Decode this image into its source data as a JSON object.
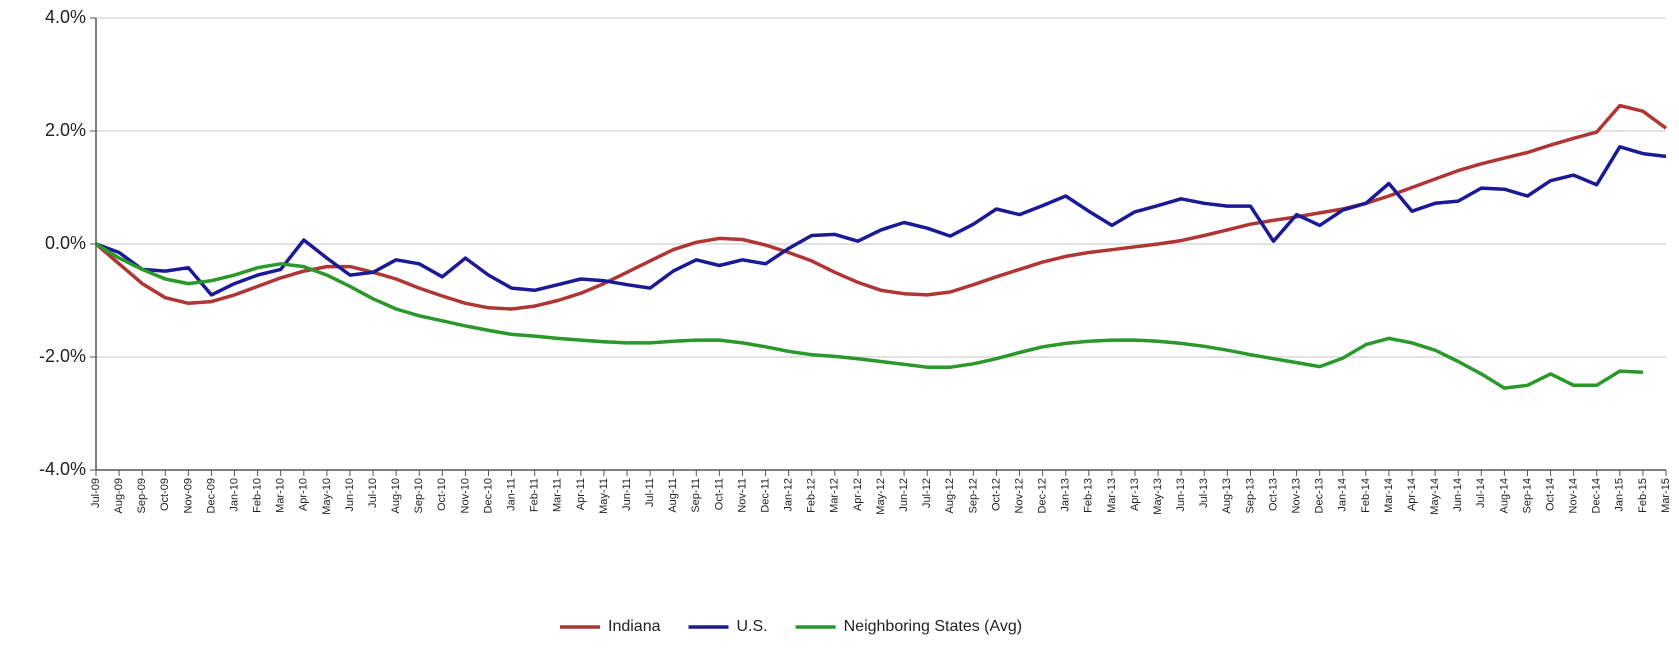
{
  "chart_data": {
    "type": "line",
    "categories": [
      "Jul-09",
      "Aug-09",
      "Sep-09",
      "Oct-09",
      "Nov-09",
      "Dec-09",
      "Jan-10",
      "Feb-10",
      "Mar-10",
      "Apr-10",
      "May-10",
      "Jun-10",
      "Jul-10",
      "Aug-10",
      "Sep-10",
      "Oct-10",
      "Nov-10",
      "Dec-10",
      "Jan-11",
      "Feb-11",
      "Mar-11",
      "Apr-11",
      "May-11",
      "Jun-11",
      "Jul-11",
      "Aug-11",
      "Sep-11",
      "Oct-11",
      "Nov-11",
      "Dec-11",
      "Jan-12",
      "Feb-12",
      "Mar-12",
      "Apr-12",
      "May-12",
      "Jun-12",
      "Jul-12",
      "Aug-12",
      "Sep-12",
      "Oct-12",
      "Nov-12",
      "Dec-12",
      "Jan-13",
      "Feb-13",
      "Mar-13",
      "Apr-13",
      "May-13",
      "Jun-13",
      "Jul-13",
      "Aug-13",
      "Sep-13",
      "Oct-13",
      "Nov-13",
      "Dec-13",
      "Jan-14",
      "Feb-14",
      "Mar-14",
      "Apr-14",
      "May-14",
      "Jun-14",
      "Jul-14",
      "Aug-14",
      "Sep-14",
      "Oct-14",
      "Nov-14",
      "Dec-14",
      "Jan-15",
      "Feb-15",
      "Mar-15"
    ],
    "series": [
      {
        "name": "Indiana",
        "color": "#b03535",
        "values": [
          0,
          -0.35,
          -0.7,
          -0.95,
          -1.05,
          -1.02,
          -0.9,
          -0.75,
          -0.6,
          -0.48,
          -0.4,
          -0.4,
          -0.5,
          -0.62,
          -0.78,
          -0.92,
          -1.05,
          -1.13,
          -1.15,
          -1.1,
          -1,
          -0.87,
          -0.7,
          -0.5,
          -0.3,
          -0.1,
          0.03,
          0.1,
          0.08,
          -0.02,
          -0.15,
          -0.3,
          -0.5,
          -0.68,
          -0.82,
          -0.88,
          -0.9,
          -0.85,
          -0.72,
          -0.58,
          -0.45,
          -0.32,
          -0.22,
          -0.15,
          -0.1,
          -0.05,
          0,
          0.06,
          0.15,
          0.25,
          0.35,
          0.42,
          0.48,
          0.55,
          0.62,
          0.72,
          0.85,
          1,
          1.15,
          1.3,
          1.42,
          1.52,
          1.62,
          1.75,
          1.87,
          1.98,
          2.45,
          2.35,
          2.05
        ]
      },
      {
        "name": "U.S.",
        "color": "#1a1a96",
        "values": [
          0,
          -0.15,
          -0.45,
          -0.48,
          -0.42,
          -0.9,
          -0.7,
          -0.55,
          -0.45,
          0.07,
          -0.25,
          -0.55,
          -0.5,
          -0.28,
          -0.35,
          -0.58,
          -0.25,
          -0.55,
          -0.78,
          -0.82,
          -0.72,
          -0.62,
          -0.65,
          -0.72,
          -0.78,
          -0.48,
          -0.28,
          -0.38,
          -0.28,
          -0.35,
          -0.08,
          0.15,
          0.17,
          0.05,
          0.25,
          0.38,
          0.28,
          0.14,
          0.35,
          0.62,
          0.52,
          0.68,
          0.85,
          0.58,
          0.33,
          0.57,
          0.68,
          0.8,
          0.72,
          0.67,
          0.67,
          0.05,
          0.52,
          0.33,
          0.6,
          0.72,
          1.07,
          0.58,
          0.72,
          0.76,
          0.99,
          0.97,
          0.85,
          1.12,
          1.22,
          1.05,
          1.72,
          1.6,
          1.55
        ]
      },
      {
        "name": "Neighboring States (Avg)",
        "color": "#2a982a",
        "values": [
          0,
          -0.25,
          -0.45,
          -0.62,
          -0.7,
          -0.65,
          -0.55,
          -0.42,
          -0.35,
          -0.4,
          -0.55,
          -0.75,
          -0.97,
          -1.15,
          -1.27,
          -1.36,
          -1.45,
          -1.53,
          -1.6,
          -1.63,
          -1.67,
          -1.7,
          -1.73,
          -1.75,
          -1.75,
          -1.72,
          -1.7,
          -1.7,
          -1.75,
          -1.82,
          -1.9,
          -1.96,
          -1.99,
          -2.03,
          -2.08,
          -2.13,
          -2.18,
          -2.18,
          -2.12,
          -2.03,
          -1.92,
          -1.82,
          -1.76,
          -1.72,
          -1.7,
          -1.7,
          -1.72,
          -1.76,
          -1.81,
          -1.88,
          -1.96,
          -2.03,
          -2.1,
          -2.17,
          -2.02,
          -1.78,
          -1.67,
          -1.75,
          -1.88,
          -2.08,
          -2.3,
          -2.55,
          -2.5,
          -2.3,
          -2.5,
          -2.5,
          -2.25,
          -2.27,
          null
        ]
      }
    ],
    "ylim": [
      -4,
      4
    ],
    "yticks": [
      {
        "value": -4,
        "label": "-4.0%"
      },
      {
        "value": -2,
        "label": "-2.0%"
      },
      {
        "value": 0,
        "label": "0.0%"
      },
      {
        "value": 2,
        "label": "2.0%"
      },
      {
        "value": 4,
        "label": "4.0%"
      }
    ],
    "grid": true,
    "legend": "bottom"
  }
}
